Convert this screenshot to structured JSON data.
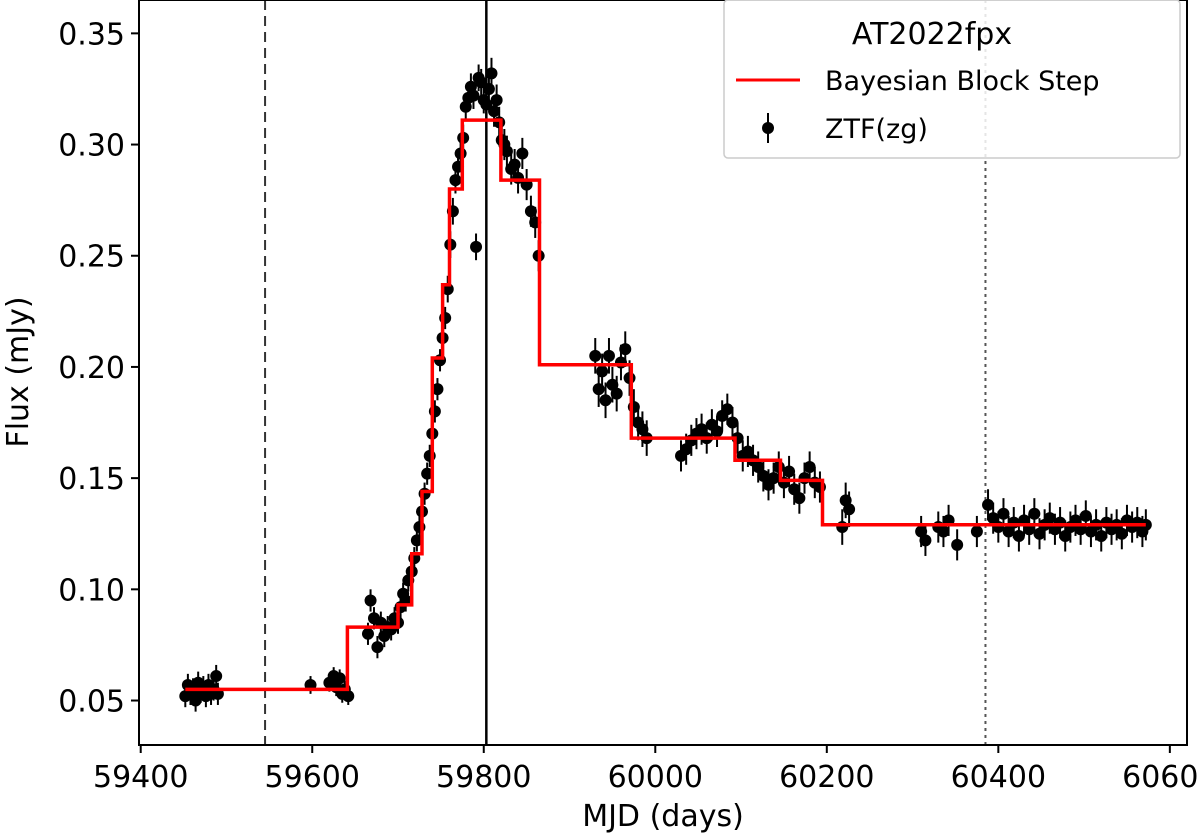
{
  "chart_data": {
    "type": "scatter",
    "title": "",
    "xlabel": "MJD (days)",
    "ylabel": "Flux (mJy)",
    "xlim": [
      59398,
      60620
    ],
    "ylim": [
      0.03,
      0.365
    ],
    "xticks": [
      59400,
      59600,
      59800,
      60000,
      60200,
      60400,
      60600
    ],
    "yticks": [
      0.05,
      0.1,
      0.15,
      0.2,
      0.25,
      0.3,
      0.35
    ],
    "xtick_labels": [
      "59400",
      "59600",
      "59800",
      "60000",
      "60200",
      "60400",
      "60600"
    ],
    "ytick_labels": [
      "0.05",
      "0.10",
      "0.15",
      "0.20",
      "0.25",
      "0.30",
      "0.35"
    ],
    "grid": false,
    "legend": {
      "title": "AT2022fpx",
      "placement": "top-right",
      "entries": [
        {
          "label": "Bayesian Block Step",
          "marker": "line",
          "color": "#ff0000"
        },
        {
          "label": "ZTF(zg)",
          "marker": "errorbar-point",
          "color": "#000000"
        }
      ]
    },
    "vertical_lines": [
      {
        "x": 59545,
        "style": "dashed",
        "color": "#333333"
      },
      {
        "x": 59803,
        "style": "solid",
        "color": "#000000"
      },
      {
        "x": 60385,
        "style": "dotted",
        "color": "#555555"
      }
    ],
    "series": [
      {
        "name": "Bayesian Block Step",
        "kind": "step",
        "color": "#ff0000",
        "x": [
          59452,
          59641,
          59641,
          59700,
          59700,
          59716,
          59716,
          59728,
          59728,
          59740,
          59740,
          59752,
          59752,
          59760,
          59760,
          59775,
          59775,
          59820,
          59820,
          59865,
          59865,
          59972,
          59972,
          60093,
          60093,
          60146,
          60146,
          60195,
          60195,
          60572
        ],
        "y": [
          0.055,
          0.055,
          0.083,
          0.083,
          0.093,
          0.093,
          0.116,
          0.116,
          0.144,
          0.144,
          0.204,
          0.204,
          0.237,
          0.237,
          0.28,
          0.28,
          0.311,
          0.311,
          0.284,
          0.284,
          0.201,
          0.201,
          0.168,
          0.168,
          0.158,
          0.158,
          0.149,
          0.149,
          0.129,
          0.129
        ]
      },
      {
        "name": "ZTF(zg)",
        "kind": "errorbar",
        "color": "#000000",
        "points": [
          [
            59452,
            0.052,
            0.005
          ],
          [
            59455,
            0.057,
            0.005
          ],
          [
            59458,
            0.053,
            0.005
          ],
          [
            59461,
            0.055,
            0.005
          ],
          [
            59464,
            0.05,
            0.005
          ],
          [
            59467,
            0.058,
            0.005
          ],
          [
            59470,
            0.054,
            0.005
          ],
          [
            59473,
            0.056,
            0.005
          ],
          [
            59476,
            0.052,
            0.005
          ],
          [
            59479,
            0.057,
            0.005
          ],
          [
            59482,
            0.053,
            0.005
          ],
          [
            59485,
            0.055,
            0.005
          ],
          [
            59488,
            0.061,
            0.005
          ],
          [
            59490,
            0.053,
            0.005
          ],
          [
            59598,
            0.057,
            0.004
          ],
          [
            59620,
            0.058,
            0.004
          ],
          [
            59625,
            0.061,
            0.004
          ],
          [
            59628,
            0.056,
            0.004
          ],
          [
            59632,
            0.06,
            0.004
          ],
          [
            59635,
            0.053,
            0.004
          ],
          [
            59638,
            0.055,
            0.004
          ],
          [
            59642,
            0.052,
            0.004
          ],
          [
            59665,
            0.08,
            0.005
          ],
          [
            59668,
            0.095,
            0.005
          ],
          [
            59672,
            0.087,
            0.005
          ],
          [
            59676,
            0.074,
            0.005
          ],
          [
            59680,
            0.085,
            0.005
          ],
          [
            59684,
            0.079,
            0.005
          ],
          [
            59688,
            0.083,
            0.005
          ],
          [
            59692,
            0.082,
            0.005
          ],
          [
            59696,
            0.087,
            0.005
          ],
          [
            59700,
            0.085,
            0.005
          ],
          [
            59703,
            0.092,
            0.005
          ],
          [
            59706,
            0.098,
            0.005
          ],
          [
            59709,
            0.095,
            0.005
          ],
          [
            59712,
            0.104,
            0.005
          ],
          [
            59716,
            0.108,
            0.005
          ],
          [
            59719,
            0.114,
            0.005
          ],
          [
            59722,
            0.122,
            0.005
          ],
          [
            59725,
            0.128,
            0.005
          ],
          [
            59728,
            0.135,
            0.005
          ],
          [
            59731,
            0.143,
            0.005
          ],
          [
            59734,
            0.152,
            0.005
          ],
          [
            59737,
            0.16,
            0.005
          ],
          [
            59740,
            0.17,
            0.005
          ],
          [
            59743,
            0.18,
            0.005
          ],
          [
            59746,
            0.19,
            0.005
          ],
          [
            59749,
            0.203,
            0.005
          ],
          [
            59752,
            0.213,
            0.005
          ],
          [
            59755,
            0.222,
            0.005
          ],
          [
            59758,
            0.235,
            0.006
          ],
          [
            59761,
            0.255,
            0.006
          ],
          [
            59764,
            0.27,
            0.006
          ],
          [
            59767,
            0.284,
            0.006
          ],
          [
            59770,
            0.29,
            0.006
          ],
          [
            59773,
            0.296,
            0.006
          ],
          [
            59776,
            0.303,
            0.006
          ],
          [
            59779,
            0.317,
            0.006
          ],
          [
            59782,
            0.321,
            0.006
          ],
          [
            59785,
            0.326,
            0.006
          ],
          [
            59788,
            0.322,
            0.006
          ],
          [
            59791,
            0.254,
            0.006
          ],
          [
            59794,
            0.33,
            0.006
          ],
          [
            59797,
            0.328,
            0.006
          ],
          [
            59800,
            0.32,
            0.006
          ],
          [
            59803,
            0.318,
            0.007
          ],
          [
            59806,
            0.325,
            0.007
          ],
          [
            59809,
            0.332,
            0.007
          ],
          [
            59812,
            0.315,
            0.007
          ],
          [
            59815,
            0.32,
            0.007
          ],
          [
            59818,
            0.31,
            0.007
          ],
          [
            59821,
            0.302,
            0.007
          ],
          [
            59824,
            0.3,
            0.007
          ],
          [
            59827,
            0.297,
            0.007
          ],
          [
            59832,
            0.289,
            0.007
          ],
          [
            59836,
            0.291,
            0.007
          ],
          [
            59840,
            0.285,
            0.007
          ],
          [
            59845,
            0.296,
            0.007
          ],
          [
            59850,
            0.282,
            0.007
          ],
          [
            59855,
            0.27,
            0.007
          ],
          [
            59860,
            0.265,
            0.007
          ],
          [
            59864,
            0.25,
            0.007
          ],
          [
            59930,
            0.205,
            0.008
          ],
          [
            59934,
            0.19,
            0.008
          ],
          [
            59938,
            0.198,
            0.008
          ],
          [
            59942,
            0.185,
            0.008
          ],
          [
            59946,
            0.205,
            0.008
          ],
          [
            59950,
            0.192,
            0.008
          ],
          [
            59955,
            0.188,
            0.008
          ],
          [
            59960,
            0.202,
            0.008
          ],
          [
            59965,
            0.208,
            0.008
          ],
          [
            59970,
            0.195,
            0.008
          ],
          [
            59975,
            0.182,
            0.008
          ],
          [
            59980,
            0.175,
            0.008
          ],
          [
            59985,
            0.172,
            0.008
          ],
          [
            59990,
            0.168,
            0.008
          ],
          [
            60030,
            0.16,
            0.007
          ],
          [
            60036,
            0.163,
            0.007
          ],
          [
            60042,
            0.167,
            0.007
          ],
          [
            60048,
            0.17,
            0.007
          ],
          [
            60054,
            0.172,
            0.007
          ],
          [
            60060,
            0.168,
            0.007
          ],
          [
            60066,
            0.174,
            0.007
          ],
          [
            60072,
            0.171,
            0.007
          ],
          [
            60078,
            0.178,
            0.007
          ],
          [
            60084,
            0.181,
            0.007
          ],
          [
            60090,
            0.175,
            0.007
          ],
          [
            60096,
            0.168,
            0.007
          ],
          [
            60102,
            0.16,
            0.007
          ],
          [
            60108,
            0.162,
            0.007
          ],
          [
            60114,
            0.158,
            0.007
          ],
          [
            60120,
            0.155,
            0.007
          ],
          [
            60126,
            0.151,
            0.007
          ],
          [
            60132,
            0.147,
            0.007
          ],
          [
            60138,
            0.15,
            0.007
          ],
          [
            60144,
            0.155,
            0.007
          ],
          [
            60150,
            0.148,
            0.007
          ],
          [
            60156,
            0.153,
            0.007
          ],
          [
            60162,
            0.145,
            0.007
          ],
          [
            60168,
            0.141,
            0.007
          ],
          [
            60174,
            0.15,
            0.007
          ],
          [
            60180,
            0.155,
            0.007
          ],
          [
            60186,
            0.148,
            0.007
          ],
          [
            60192,
            0.146,
            0.007
          ],
          [
            60218,
            0.128,
            0.008
          ],
          [
            60222,
            0.14,
            0.008
          ],
          [
            60226,
            0.136,
            0.008
          ],
          [
            60310,
            0.126,
            0.007
          ],
          [
            60315,
            0.122,
            0.007
          ],
          [
            60330,
            0.128,
            0.007
          ],
          [
            60336,
            0.126,
            0.007
          ],
          [
            60342,
            0.131,
            0.007
          ],
          [
            60352,
            0.12,
            0.007
          ],
          [
            60375,
            0.126,
            0.007
          ],
          [
            60388,
            0.138,
            0.007
          ],
          [
            60394,
            0.132,
            0.007
          ],
          [
            60400,
            0.128,
            0.007
          ],
          [
            60406,
            0.134,
            0.007
          ],
          [
            60412,
            0.126,
            0.007
          ],
          [
            60418,
            0.13,
            0.007
          ],
          [
            60424,
            0.124,
            0.007
          ],
          [
            60430,
            0.131,
            0.007
          ],
          [
            60436,
            0.127,
            0.007
          ],
          [
            60442,
            0.134,
            0.007
          ],
          [
            60448,
            0.125,
            0.007
          ],
          [
            60454,
            0.129,
            0.007
          ],
          [
            60460,
            0.132,
            0.007
          ],
          [
            60466,
            0.127,
            0.007
          ],
          [
            60472,
            0.13,
            0.007
          ],
          [
            60478,
            0.124,
            0.007
          ],
          [
            60484,
            0.128,
            0.007
          ],
          [
            60490,
            0.131,
            0.007
          ],
          [
            60496,
            0.127,
            0.007
          ],
          [
            60502,
            0.133,
            0.007
          ],
          [
            60508,
            0.126,
            0.007
          ],
          [
            60514,
            0.129,
            0.007
          ],
          [
            60520,
            0.124,
            0.007
          ],
          [
            60526,
            0.13,
            0.007
          ],
          [
            60532,
            0.127,
            0.007
          ],
          [
            60538,
            0.129,
            0.007
          ],
          [
            60544,
            0.125,
            0.007
          ],
          [
            60550,
            0.131,
            0.007
          ],
          [
            60556,
            0.128,
            0.007
          ],
          [
            60562,
            0.13,
            0.007
          ],
          [
            60568,
            0.126,
            0.007
          ],
          [
            60572,
            0.129,
            0.007
          ]
        ]
      }
    ]
  },
  "colors": {
    "step": "#ff0000",
    "points": "#000000",
    "axes": "#000000",
    "legend_border": "#cccccc"
  }
}
